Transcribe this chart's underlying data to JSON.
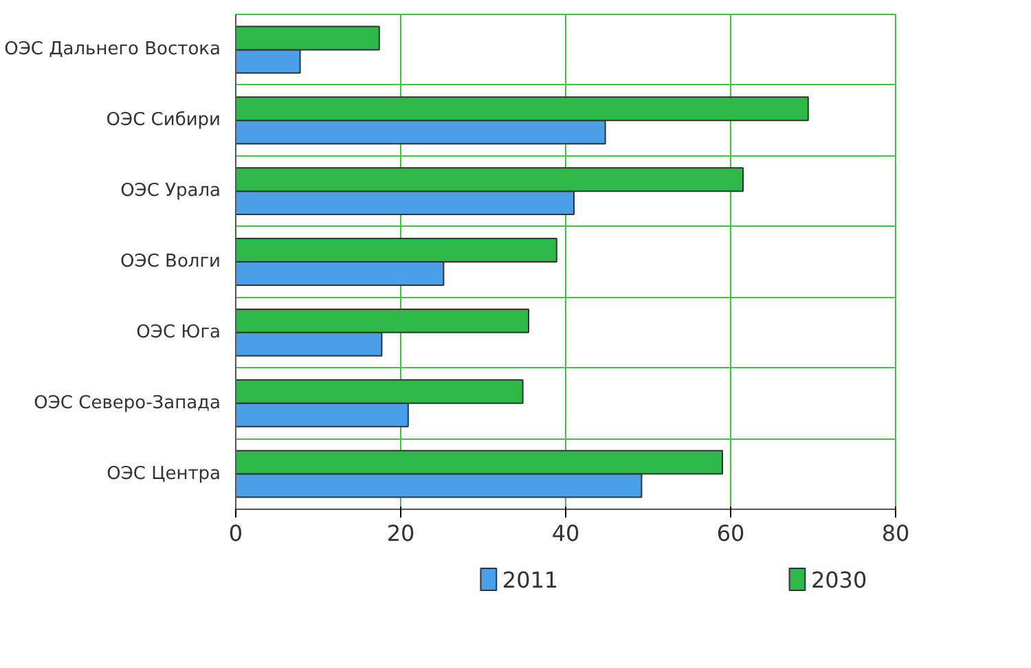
{
  "chart_data": {
    "type": "bar",
    "orientation": "horizontal",
    "categories": [
      "ОЭС Дальнего Востока",
      "ОЭС Сибири",
      "ОЭС Урала",
      "ОЭС Волги",
      "ОЭС Юга",
      "ОЭС Северо-Запада",
      "ОЭС Центра"
    ],
    "series": [
      {
        "name": "2011",
        "color": "#4a9fe8",
        "values": [
          7.8,
          44.8,
          41,
          25.2,
          17.7,
          20.9,
          49.2
        ]
      },
      {
        "name": "2030",
        "color": "#2db84a",
        "values": [
          17.4,
          69.4,
          61.5,
          38.9,
          35.5,
          34.8,
          59
        ]
      }
    ],
    "xlim": [
      0,
      80
    ],
    "xticks": [
      0,
      20,
      40,
      60,
      80
    ],
    "grid": true,
    "legend": "bottom"
  }
}
